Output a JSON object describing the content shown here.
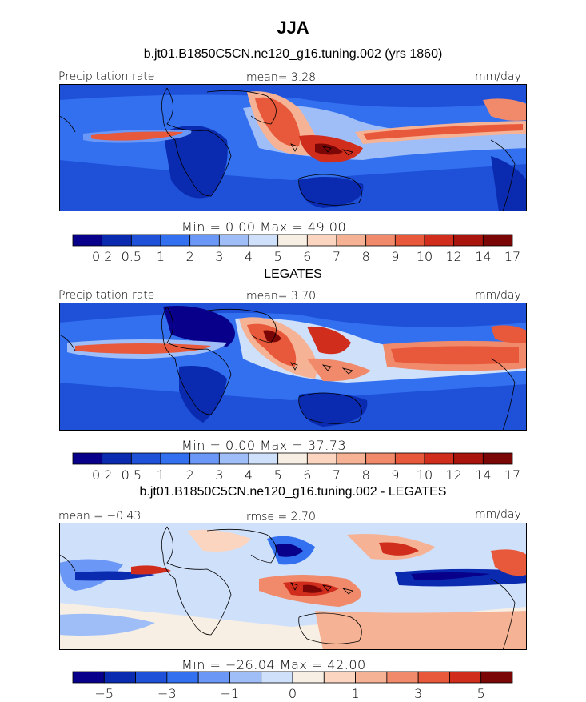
{
  "figure": {
    "title": "JJA",
    "panel_top_subtitle": "b.jt01.B1850C5CN.ne120_g16.tuning.002 (yrs 1860)",
    "panel_mid_subtitle": "LEGATES",
    "panel_bot_subtitle": "b.jt01.B1850C5CN.ne120_g16.tuning.002 - LEGATES"
  },
  "colors": {
    "abs_scale": [
      "#08008a",
      "#0a2bb0",
      "#1e50d8",
      "#3270f0",
      "#6b97f6",
      "#9fbef8",
      "#cfe0fb",
      "#f7efe4",
      "#fbd5bf",
      "#f6b294",
      "#f08a6a",
      "#e8583a",
      "#d02d1c",
      "#a9150c",
      "#7a0606"
    ],
    "diff_scale": [
      "#08008a",
      "#0a2bb0",
      "#1e50d8",
      "#3270f0",
      "#6b97f6",
      "#9fbef8",
      "#cfe0fb",
      "#f7efe4",
      "#fbd5bf",
      "#f6b294",
      "#f08a6a",
      "#e8583a",
      "#d02d1c",
      "#7a0606"
    ]
  },
  "chart_data": [
    {
      "type": "heatmap",
      "title": "b.jt01.B1850C5CN.ne120_g16.tuning.002 (yrs 1860)",
      "left_label": "Precipitation rate",
      "center_label": "mean=   3.28",
      "right_label": "mm/day",
      "variable": "Precipitation rate",
      "units": "mm/day",
      "mean": 3.28,
      "min": 0.0,
      "max": 49.0,
      "stats_text": "Min =    0.00 Max =   49.00",
      "colorbar_labels": [
        "0.2",
        "0.5",
        "1",
        "2",
        "3",
        "4",
        "5",
        "6",
        "7",
        "8",
        "9",
        "10",
        "12",
        "14",
        "17"
      ],
      "colorbar_levels": [
        0.2,
        0.5,
        1,
        2,
        3,
        4,
        5,
        6,
        7,
        8,
        9,
        10,
        12,
        14,
        17
      ]
    },
    {
      "type": "heatmap",
      "title": "LEGATES",
      "left_label": "Precipitation rate",
      "center_label": "mean=   3.70",
      "right_label": "mm/day",
      "variable": "Precipitation rate",
      "units": "mm/day",
      "mean": 3.7,
      "min": 0.0,
      "max": 37.73,
      "stats_text": "Min =    0.00 Max =   37.73",
      "colorbar_labels": [
        "0.2",
        "0.5",
        "1",
        "2",
        "3",
        "4",
        "5",
        "6",
        "7",
        "8",
        "9",
        "10",
        "12",
        "14",
        "17"
      ],
      "colorbar_levels": [
        0.2,
        0.5,
        1,
        2,
        3,
        4,
        5,
        6,
        7,
        8,
        9,
        10,
        12,
        14,
        17
      ]
    },
    {
      "type": "heatmap",
      "title": "b.jt01.B1850C5CN.ne120_g16.tuning.002 - LEGATES",
      "left_label": "mean =  −0.43",
      "center_label": "rmse =   2.70",
      "right_label": "mm/day",
      "units": "mm/day",
      "mean": -0.43,
      "rmse": 2.7,
      "min": -26.04,
      "max": 42.0,
      "stats_text": "Min = −26.04 Max =   42.00",
      "colorbar_labels": [
        "−5",
        "−3",
        "−1",
        "0",
        "1",
        "3",
        "5"
      ],
      "colorbar_levels": [
        -5,
        -3,
        -1,
        0,
        1,
        3,
        5
      ]
    }
  ]
}
